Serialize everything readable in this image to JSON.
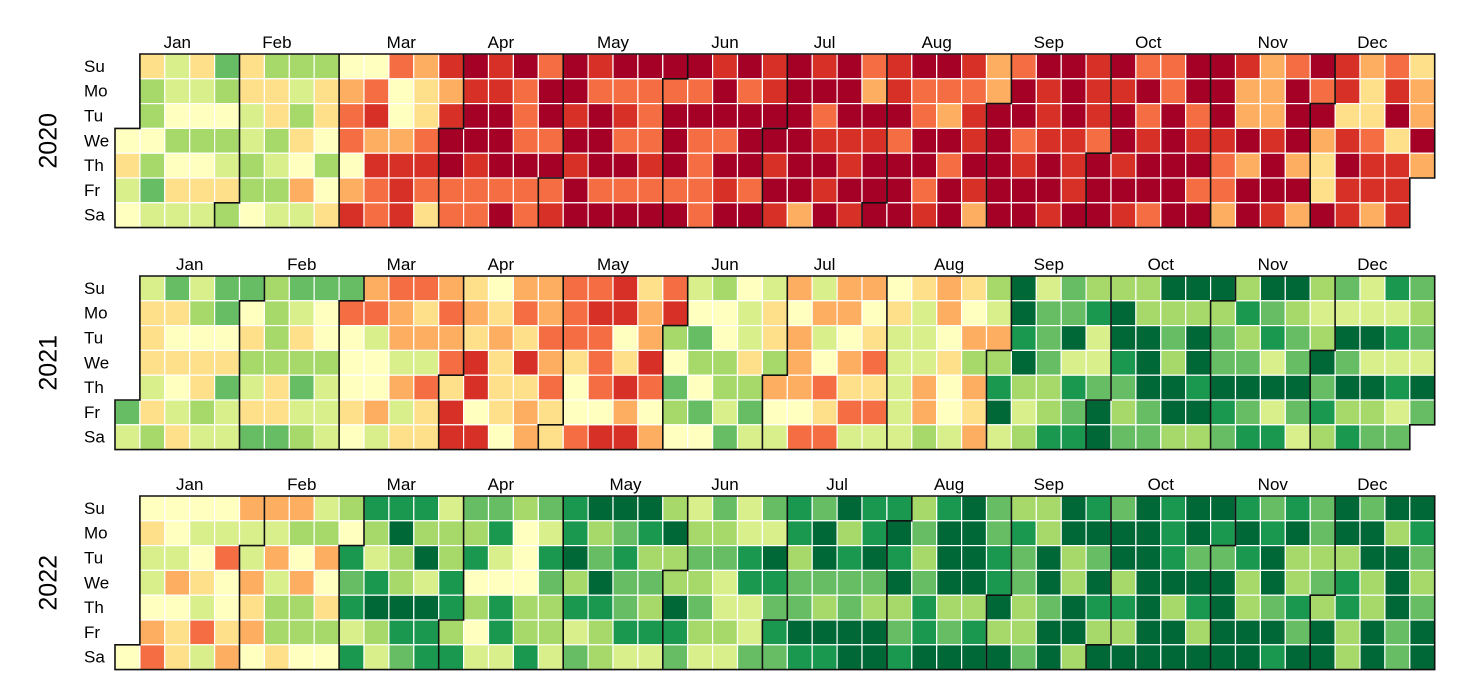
{
  "chart_data": {
    "type": "heatmap",
    "layout": "calendar",
    "title": "",
    "month_labels": [
      "Jan",
      "Feb",
      "Mar",
      "Apr",
      "May",
      "Jun",
      "Jul",
      "Aug",
      "Sep",
      "Oct",
      "Nov",
      "Dec"
    ],
    "day_labels": [
      "Su",
      "Mo",
      "Tu",
      "We",
      "Th",
      "Fr",
      "Sa"
    ],
    "color_scale": [
      "#006837",
      "#1a9850",
      "#66bd63",
      "#a6d96a",
      "#d9ef8b",
      "#ffffbf",
      "#fee08b",
      "#fdae61",
      "#f46d43",
      "#d73027",
      "#a50026"
    ],
    "value_range": [
      0,
      10
    ],
    "legend": "none",
    "years": [
      {
        "year": "2020",
        "start_weekday": 3,
        "days": 366
      },
      {
        "year": "2021",
        "start_weekday": 5,
        "days": 365
      },
      {
        "year": "2022",
        "start_weekday": 6,
        "days": 365
      }
    ],
    "monthly_levels": [
      [
        4,
        5,
        7,
        10,
        10,
        10,
        9,
        9,
        10,
        10,
        9,
        8
      ],
      [
        4,
        4,
        6,
        7,
        7,
        4,
        6,
        5,
        2,
        1,
        2,
        2
      ],
      [
        6,
        5,
        2,
        3,
        2,
        2,
        1,
        1,
        1,
        1,
        1,
        1
      ]
    ]
  }
}
